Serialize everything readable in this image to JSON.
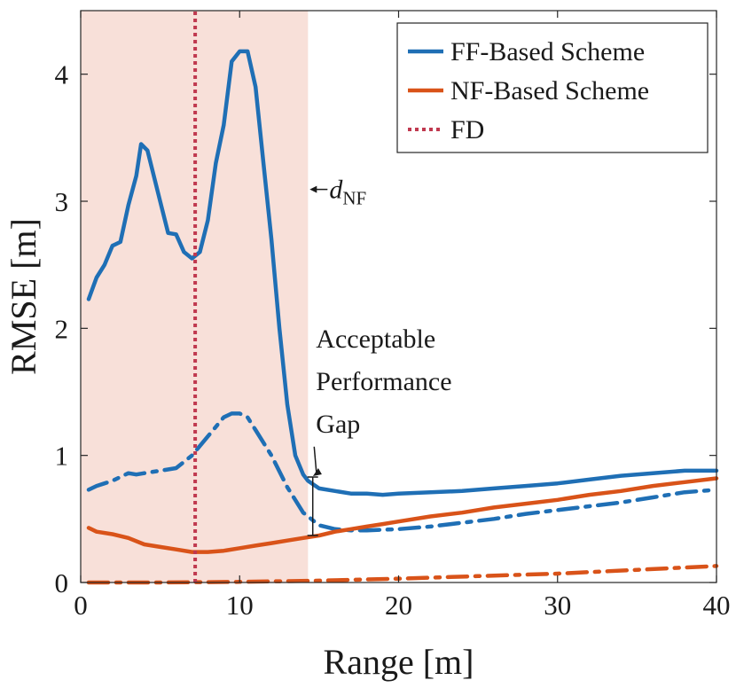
{
  "chart_data": {
    "type": "line",
    "title": "",
    "xlabel": "Range [m]",
    "ylabel": "RMSE [m]",
    "xlim": [
      0,
      40
    ],
    "ylim": [
      0,
      4.5
    ],
    "xticks": [
      0,
      10,
      20,
      30,
      40
    ],
    "yticks": [
      0,
      1,
      2,
      3,
      4
    ],
    "legend_position": "top-right",
    "near_field_region": {
      "x_start": 0,
      "x_end": 14.3,
      "color": "#f8e0d9"
    },
    "fd_line_x": 7.2,
    "dnf_label": {
      "text": "d",
      "subscript": "NF",
      "x": 14.3,
      "y": 3.1
    },
    "series": [
      {
        "name": "FF-Based Scheme",
        "legend": true,
        "color": "#1f6fb5",
        "style": "solid",
        "x": [
          0.5,
          1,
          1.5,
          2,
          2.5,
          3,
          3.5,
          3.8,
          4.2,
          5,
          5.5,
          6,
          6.5,
          7,
          7.5,
          8,
          8.5,
          9,
          9.5,
          10,
          10.5,
          11,
          11.5,
          12,
          12.5,
          13,
          13.5,
          14,
          14.3,
          15,
          16,
          17,
          18,
          19,
          20,
          22,
          24,
          26,
          28,
          30,
          32,
          34,
          36,
          38,
          40
        ],
        "y": [
          2.23,
          2.4,
          2.5,
          2.65,
          2.68,
          2.97,
          3.2,
          3.45,
          3.4,
          3.0,
          2.75,
          2.74,
          2.6,
          2.55,
          2.6,
          2.85,
          3.3,
          3.6,
          4.1,
          4.18,
          4.18,
          3.9,
          3.3,
          2.7,
          2.0,
          1.4,
          1.0,
          0.85,
          0.8,
          0.74,
          0.72,
          0.7,
          0.7,
          0.69,
          0.7,
          0.71,
          0.72,
          0.74,
          0.76,
          0.78,
          0.81,
          0.84,
          0.86,
          0.88,
          0.88
        ]
      },
      {
        "name": "FF-Based Scheme (dash-dot)",
        "legend": false,
        "color": "#1f6fb5",
        "style": "dashdot",
        "x": [
          0.5,
          1,
          1.5,
          2,
          2.5,
          3,
          3.5,
          4,
          5,
          6,
          7,
          8,
          9,
          9.5,
          10,
          10.5,
          11,
          12,
          13,
          14,
          15,
          16,
          17,
          18,
          20,
          22,
          24,
          26,
          28,
          30,
          32,
          34,
          36,
          38,
          40
        ],
        "y": [
          0.73,
          0.76,
          0.78,
          0.8,
          0.83,
          0.86,
          0.85,
          0.86,
          0.88,
          0.9,
          1.0,
          1.15,
          1.3,
          1.33,
          1.33,
          1.3,
          1.2,
          1.0,
          0.75,
          0.55,
          0.45,
          0.42,
          0.41,
          0.41,
          0.42,
          0.44,
          0.47,
          0.5,
          0.54,
          0.57,
          0.6,
          0.63,
          0.67,
          0.71,
          0.73
        ]
      },
      {
        "name": "NF-Based Scheme",
        "legend": true,
        "color": "#d95319",
        "style": "solid",
        "x": [
          0.5,
          1,
          2,
          3,
          4,
          5,
          6,
          7,
          8,
          9,
          10,
          11,
          12,
          13,
          14,
          15,
          16,
          17,
          18,
          19,
          20,
          22,
          24,
          26,
          28,
          30,
          32,
          34,
          36,
          38,
          40
        ],
        "y": [
          0.43,
          0.4,
          0.38,
          0.35,
          0.3,
          0.28,
          0.26,
          0.24,
          0.24,
          0.25,
          0.27,
          0.29,
          0.31,
          0.33,
          0.35,
          0.37,
          0.4,
          0.42,
          0.44,
          0.46,
          0.48,
          0.52,
          0.55,
          0.59,
          0.62,
          0.65,
          0.69,
          0.72,
          0.76,
          0.79,
          0.82
        ]
      },
      {
        "name": "NF-Based Scheme (dash-dot)",
        "legend": false,
        "color": "#d95319",
        "style": "dashdot",
        "x": [
          0.5,
          5,
          10,
          15,
          20,
          25,
          30,
          35,
          40
        ],
        "y": [
          0.0,
          0.0,
          0.005,
          0.015,
          0.03,
          0.05,
          0.07,
          0.1,
          0.13
        ]
      },
      {
        "name": "FD",
        "legend": true,
        "color": "#c0394f",
        "style": "dotted",
        "x": [
          7.2,
          7.2
        ],
        "y": [
          0,
          4.5
        ]
      }
    ],
    "annotations": [
      {
        "lines": [
          "Acceptable",
          "Performance",
          "Gap"
        ],
        "x": 14.8,
        "y": 1.85,
        "arrow_to": [
          14.5,
          0.83
        ],
        "gap_x": 14.6,
        "gap_y": [
          0.37,
          0.83
        ]
      }
    ]
  }
}
